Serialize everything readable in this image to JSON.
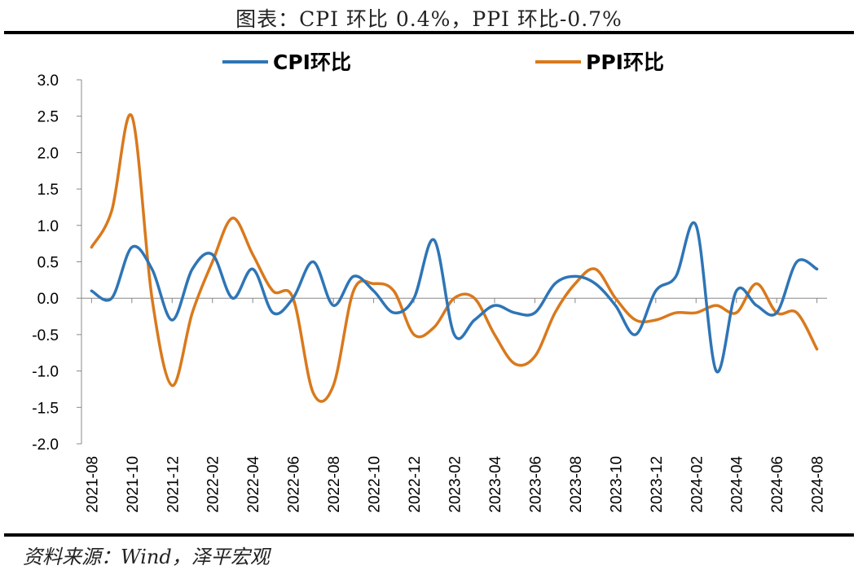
{
  "title": "图表：CPI 环比 0.4%，PPI 环比-0.7%",
  "source": "资料来源：Wind，泽平宏观",
  "chart_data": {
    "type": "line",
    "title": "图表：CPI 环比 0.4%，PPI 环比-0.7%",
    "xlabel": "",
    "ylabel": "",
    "ylim": [
      -2.0,
      3.0
    ],
    "yticks": [
      "3.0",
      "2.5",
      "2.0",
      "1.5",
      "1.0",
      "0.5",
      "0.0",
      "-0.5",
      "-1.0",
      "-1.5",
      "-2.0"
    ],
    "ytick_values": [
      3.0,
      2.5,
      2.0,
      1.5,
      1.0,
      0.5,
      0.0,
      -0.5,
      -1.0,
      -1.5,
      -2.0
    ],
    "x": [
      "2021-08",
      "2021-09",
      "2021-10",
      "2021-11",
      "2021-12",
      "2022-01",
      "2022-02",
      "2022-03",
      "2022-04",
      "2022-05",
      "2022-06",
      "2022-07",
      "2022-08",
      "2022-09",
      "2022-10",
      "2022-11",
      "2022-12",
      "2023-01",
      "2023-02",
      "2023-03",
      "2023-04",
      "2023-05",
      "2023-06",
      "2023-07",
      "2023-08",
      "2023-09",
      "2023-10",
      "2023-11",
      "2023-12",
      "2024-01",
      "2024-02",
      "2024-03",
      "2024-04",
      "2024-05",
      "2024-06",
      "2024-07",
      "2024-08"
    ],
    "xticks": [
      "2021-08",
      "2021-10",
      "2021-12",
      "2022-02",
      "2022-04",
      "2022-06",
      "2022-08",
      "2022-10",
      "2022-12",
      "2023-02",
      "2023-04",
      "2023-06",
      "2023-08",
      "2023-10",
      "2023-12",
      "2024-02",
      "2024-04",
      "2024-06",
      "2024-08"
    ],
    "series": [
      {
        "name": "CPI环比",
        "color": "#2E75B6",
        "values": [
          0.1,
          0.0,
          0.7,
          0.4,
          -0.3,
          0.4,
          0.6,
          0.0,
          0.4,
          -0.2,
          0.0,
          0.5,
          -0.1,
          0.3,
          0.1,
          -0.2,
          0.0,
          0.8,
          -0.5,
          -0.3,
          -0.1,
          -0.2,
          -0.2,
          0.2,
          0.3,
          0.2,
          -0.1,
          -0.5,
          0.1,
          0.3,
          1.0,
          -1.0,
          0.1,
          -0.1,
          -0.2,
          0.5,
          0.4
        ]
      },
      {
        "name": "PPI环比",
        "color": "#D9791C",
        "values": [
          0.7,
          1.2,
          2.5,
          0.0,
          -1.2,
          -0.2,
          0.5,
          1.1,
          0.6,
          0.1,
          0.0,
          -1.3,
          -1.2,
          0.1,
          0.2,
          0.1,
          -0.5,
          -0.4,
          0.0,
          0.0,
          -0.5,
          -0.9,
          -0.8,
          -0.2,
          0.2,
          0.4,
          0.0,
          -0.3,
          -0.3,
          -0.2,
          -0.2,
          -0.1,
          -0.2,
          0.2,
          -0.2,
          -0.2,
          -0.7
        ]
      }
    ],
    "legend": "top",
    "grid": false
  }
}
